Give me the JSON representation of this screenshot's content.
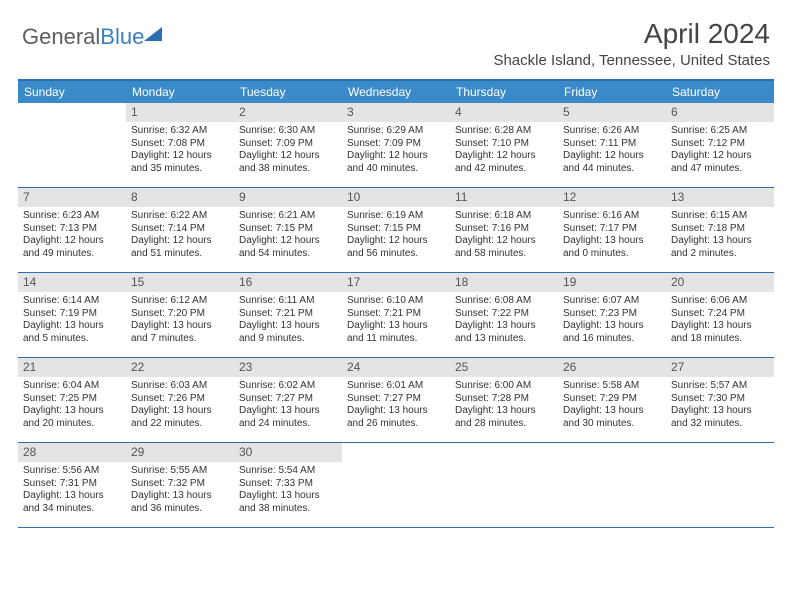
{
  "brand": {
    "part1": "General",
    "part2": "Blue"
  },
  "title": "April 2024",
  "location": "Shackle Island, Tennessee, United States",
  "colors": {
    "header_bg": "#3a8ac9",
    "border": "#2a6db0",
    "daynum_bg": "#e4e4e4",
    "text": "#333333"
  },
  "day_headers": [
    "Sunday",
    "Monday",
    "Tuesday",
    "Wednesday",
    "Thursday",
    "Friday",
    "Saturday"
  ],
  "weeks": [
    [
      {
        "empty": true
      },
      {
        "day": "1",
        "sunrise": "Sunrise: 6:32 AM",
        "sunset": "Sunset: 7:08 PM",
        "dl1": "Daylight: 12 hours",
        "dl2": "and 35 minutes."
      },
      {
        "day": "2",
        "sunrise": "Sunrise: 6:30 AM",
        "sunset": "Sunset: 7:09 PM",
        "dl1": "Daylight: 12 hours",
        "dl2": "and 38 minutes."
      },
      {
        "day": "3",
        "sunrise": "Sunrise: 6:29 AM",
        "sunset": "Sunset: 7:09 PM",
        "dl1": "Daylight: 12 hours",
        "dl2": "and 40 minutes."
      },
      {
        "day": "4",
        "sunrise": "Sunrise: 6:28 AM",
        "sunset": "Sunset: 7:10 PM",
        "dl1": "Daylight: 12 hours",
        "dl2": "and 42 minutes."
      },
      {
        "day": "5",
        "sunrise": "Sunrise: 6:26 AM",
        "sunset": "Sunset: 7:11 PM",
        "dl1": "Daylight: 12 hours",
        "dl2": "and 44 minutes."
      },
      {
        "day": "6",
        "sunrise": "Sunrise: 6:25 AM",
        "sunset": "Sunset: 7:12 PM",
        "dl1": "Daylight: 12 hours",
        "dl2": "and 47 minutes."
      }
    ],
    [
      {
        "day": "7",
        "sunrise": "Sunrise: 6:23 AM",
        "sunset": "Sunset: 7:13 PM",
        "dl1": "Daylight: 12 hours",
        "dl2": "and 49 minutes."
      },
      {
        "day": "8",
        "sunrise": "Sunrise: 6:22 AM",
        "sunset": "Sunset: 7:14 PM",
        "dl1": "Daylight: 12 hours",
        "dl2": "and 51 minutes."
      },
      {
        "day": "9",
        "sunrise": "Sunrise: 6:21 AM",
        "sunset": "Sunset: 7:15 PM",
        "dl1": "Daylight: 12 hours",
        "dl2": "and 54 minutes."
      },
      {
        "day": "10",
        "sunrise": "Sunrise: 6:19 AM",
        "sunset": "Sunset: 7:15 PM",
        "dl1": "Daylight: 12 hours",
        "dl2": "and 56 minutes."
      },
      {
        "day": "11",
        "sunrise": "Sunrise: 6:18 AM",
        "sunset": "Sunset: 7:16 PM",
        "dl1": "Daylight: 12 hours",
        "dl2": "and 58 minutes."
      },
      {
        "day": "12",
        "sunrise": "Sunrise: 6:16 AM",
        "sunset": "Sunset: 7:17 PM",
        "dl1": "Daylight: 13 hours",
        "dl2": "and 0 minutes."
      },
      {
        "day": "13",
        "sunrise": "Sunrise: 6:15 AM",
        "sunset": "Sunset: 7:18 PM",
        "dl1": "Daylight: 13 hours",
        "dl2": "and 2 minutes."
      }
    ],
    [
      {
        "day": "14",
        "sunrise": "Sunrise: 6:14 AM",
        "sunset": "Sunset: 7:19 PM",
        "dl1": "Daylight: 13 hours",
        "dl2": "and 5 minutes."
      },
      {
        "day": "15",
        "sunrise": "Sunrise: 6:12 AM",
        "sunset": "Sunset: 7:20 PM",
        "dl1": "Daylight: 13 hours",
        "dl2": "and 7 minutes."
      },
      {
        "day": "16",
        "sunrise": "Sunrise: 6:11 AM",
        "sunset": "Sunset: 7:21 PM",
        "dl1": "Daylight: 13 hours",
        "dl2": "and 9 minutes."
      },
      {
        "day": "17",
        "sunrise": "Sunrise: 6:10 AM",
        "sunset": "Sunset: 7:21 PM",
        "dl1": "Daylight: 13 hours",
        "dl2": "and 11 minutes."
      },
      {
        "day": "18",
        "sunrise": "Sunrise: 6:08 AM",
        "sunset": "Sunset: 7:22 PM",
        "dl1": "Daylight: 13 hours",
        "dl2": "and 13 minutes."
      },
      {
        "day": "19",
        "sunrise": "Sunrise: 6:07 AM",
        "sunset": "Sunset: 7:23 PM",
        "dl1": "Daylight: 13 hours",
        "dl2": "and 16 minutes."
      },
      {
        "day": "20",
        "sunrise": "Sunrise: 6:06 AM",
        "sunset": "Sunset: 7:24 PM",
        "dl1": "Daylight: 13 hours",
        "dl2": "and 18 minutes."
      }
    ],
    [
      {
        "day": "21",
        "sunrise": "Sunrise: 6:04 AM",
        "sunset": "Sunset: 7:25 PM",
        "dl1": "Daylight: 13 hours",
        "dl2": "and 20 minutes."
      },
      {
        "day": "22",
        "sunrise": "Sunrise: 6:03 AM",
        "sunset": "Sunset: 7:26 PM",
        "dl1": "Daylight: 13 hours",
        "dl2": "and 22 minutes."
      },
      {
        "day": "23",
        "sunrise": "Sunrise: 6:02 AM",
        "sunset": "Sunset: 7:27 PM",
        "dl1": "Daylight: 13 hours",
        "dl2": "and 24 minutes."
      },
      {
        "day": "24",
        "sunrise": "Sunrise: 6:01 AM",
        "sunset": "Sunset: 7:27 PM",
        "dl1": "Daylight: 13 hours",
        "dl2": "and 26 minutes."
      },
      {
        "day": "25",
        "sunrise": "Sunrise: 6:00 AM",
        "sunset": "Sunset: 7:28 PM",
        "dl1": "Daylight: 13 hours",
        "dl2": "and 28 minutes."
      },
      {
        "day": "26",
        "sunrise": "Sunrise: 5:58 AM",
        "sunset": "Sunset: 7:29 PM",
        "dl1": "Daylight: 13 hours",
        "dl2": "and 30 minutes."
      },
      {
        "day": "27",
        "sunrise": "Sunrise: 5:57 AM",
        "sunset": "Sunset: 7:30 PM",
        "dl1": "Daylight: 13 hours",
        "dl2": "and 32 minutes."
      }
    ],
    [
      {
        "day": "28",
        "sunrise": "Sunrise: 5:56 AM",
        "sunset": "Sunset: 7:31 PM",
        "dl1": "Daylight: 13 hours",
        "dl2": "and 34 minutes."
      },
      {
        "day": "29",
        "sunrise": "Sunrise: 5:55 AM",
        "sunset": "Sunset: 7:32 PM",
        "dl1": "Daylight: 13 hours",
        "dl2": "and 36 minutes."
      },
      {
        "day": "30",
        "sunrise": "Sunrise: 5:54 AM",
        "sunset": "Sunset: 7:33 PM",
        "dl1": "Daylight: 13 hours",
        "dl2": "and 38 minutes."
      },
      {
        "empty": true
      },
      {
        "empty": true
      },
      {
        "empty": true
      },
      {
        "empty": true
      }
    ]
  ]
}
